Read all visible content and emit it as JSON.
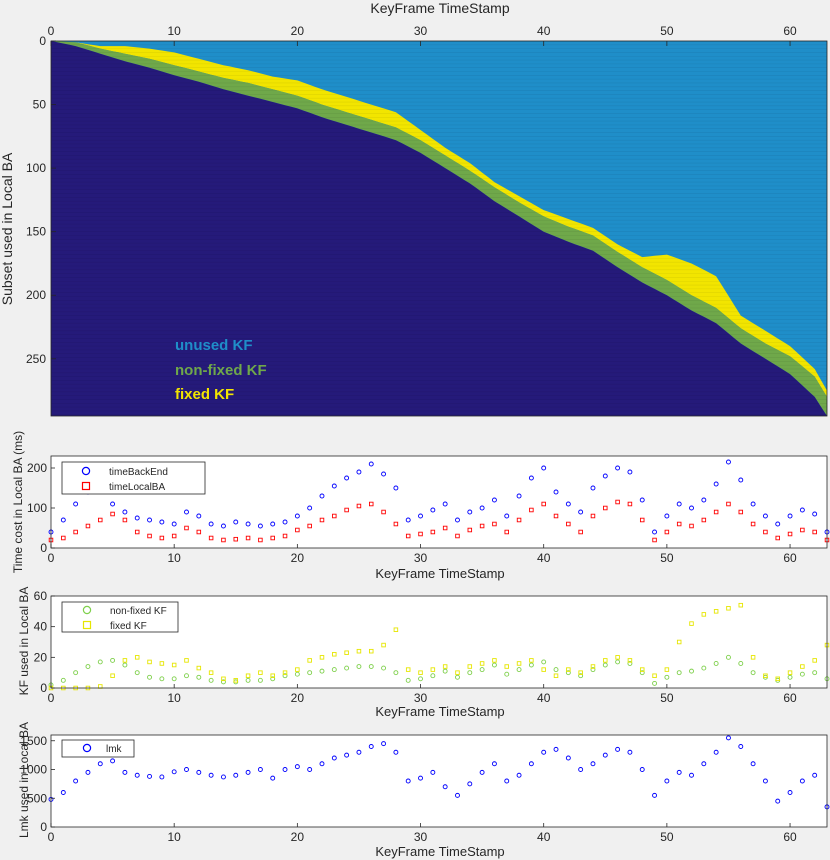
{
  "figure": {
    "background": "#f0f0f0",
    "colors": {
      "unused": "#1f8ec9",
      "nonfixed": "#6fa84a",
      "fixed": "#f2e500",
      "beyond": "#251a7a",
      "blue_marker": "#0000ff",
      "red_marker": "#ff0000",
      "green_marker": "#7fd04c",
      "yellow_marker": "#e6e600"
    }
  },
  "chart_data": [
    {
      "type": "heatmap",
      "title": "KeyFrame TimeStamp",
      "xlabel": "",
      "ylabel": "Subset used in Local BA",
      "xlim": [
        0,
        63
      ],
      "ylim": [
        0,
        295
      ],
      "xticks": [
        "0",
        "10",
        "20",
        "30",
        "40",
        "50",
        "60"
      ],
      "yticks": [
        "0",
        "50",
        "100",
        "150",
        "200",
        "250"
      ],
      "annotations": [
        {
          "text": "unused KF",
          "color": "#1f8ec9"
        },
        {
          "text": "non-fixed KF",
          "color": "#6fa84a"
        },
        {
          "text": "fixed KF",
          "color": "#f2e500"
        }
      ],
      "profile": {
        "x": [
          0,
          2,
          4,
          6,
          8,
          10,
          12,
          14,
          16,
          18,
          20,
          22,
          24,
          26,
          28,
          30,
          32,
          34,
          36,
          38,
          40,
          42,
          44,
          46,
          48,
          50,
          52,
          54,
          56,
          58,
          60,
          62,
          63
        ],
        "diagonal_row": [
          0,
          4,
          10,
          16,
          21,
          27,
          32,
          38,
          43,
          48,
          53,
          60,
          66,
          72,
          78,
          88,
          100,
          112,
          126,
          138,
          150,
          158,
          165,
          178,
          190,
          200,
          212,
          222,
          238,
          250,
          262,
          280,
          295
        ],
        "nonfixed_band": [
          0,
          3,
          4,
          6,
          7,
          8,
          8,
          9,
          10,
          10,
          10,
          10,
          10,
          10,
          10,
          10,
          10,
          10,
          11,
          11,
          12,
          12,
          12,
          12,
          12,
          12,
          12,
          12,
          12,
          12,
          14,
          16,
          15
        ],
        "fixed_band": [
          0,
          0,
          2,
          6,
          8,
          10,
          10,
          10,
          10,
          10,
          12,
          12,
          12,
          12,
          12,
          8,
          6,
          6,
          4,
          5,
          5,
          6,
          6,
          6,
          8,
          20,
          25,
          25,
          10,
          10,
          8,
          6,
          5
        ]
      }
    },
    {
      "type": "scatter",
      "xlabel": "KeyFrame TimeStamp",
      "ylabel": "Time cost in Local BA (ms)",
      "xlim": [
        0,
        63
      ],
      "ylim": [
        0,
        230
      ],
      "xticks": [
        "0",
        "10",
        "20",
        "30",
        "40",
        "50",
        "60"
      ],
      "yticks": [
        "0",
        "100",
        "200"
      ],
      "legend_position": "top-left",
      "series": [
        {
          "name": "timeBackEnd",
          "marker": "circle",
          "color": "#0000ff",
          "x": [
            0,
            1,
            2,
            3,
            4,
            5,
            6,
            7,
            8,
            9,
            10,
            11,
            12,
            13,
            14,
            15,
            16,
            17,
            18,
            19,
            20,
            21,
            22,
            23,
            24,
            25,
            26,
            27,
            28,
            29,
            30,
            31,
            32,
            33,
            34,
            35,
            36,
            37,
            38,
            39,
            40,
            41,
            42,
            43,
            44,
            45,
            46,
            47,
            48,
            49,
            50,
            51,
            52,
            53,
            54,
            55,
            56,
            57,
            58,
            59,
            60,
            61,
            62,
            63
          ],
          "y": [
            40,
            70,
            110,
            140,
            165,
            110,
            90,
            75,
            70,
            65,
            60,
            90,
            80,
            60,
            55,
            65,
            60,
            55,
            60,
            65,
            80,
            100,
            130,
            155,
            175,
            190,
            210,
            185,
            150,
            70,
            80,
            95,
            110,
            70,
            90,
            100,
            120,
            80,
            130,
            175,
            200,
            140,
            110,
            90,
            150,
            180,
            200,
            190,
            120,
            40,
            80,
            110,
            100,
            120,
            160,
            215,
            170,
            110,
            80,
            60,
            80,
            95,
            85,
            40
          ]
        },
        {
          "name": "timeLocalBA",
          "marker": "square",
          "color": "#ff0000",
          "x": [
            0,
            1,
            2,
            3,
            4,
            5,
            6,
            7,
            8,
            9,
            10,
            11,
            12,
            13,
            14,
            15,
            16,
            17,
            18,
            19,
            20,
            21,
            22,
            23,
            24,
            25,
            26,
            27,
            28,
            29,
            30,
            31,
            32,
            33,
            34,
            35,
            36,
            37,
            38,
            39,
            40,
            41,
            42,
            43,
            44,
            45,
            46,
            47,
            48,
            49,
            50,
            51,
            52,
            53,
            54,
            55,
            56,
            57,
            58,
            59,
            60,
            61,
            62,
            63
          ],
          "y": [
            20,
            25,
            40,
            55,
            70,
            85,
            70,
            40,
            30,
            25,
            30,
            50,
            40,
            25,
            20,
            22,
            25,
            20,
            25,
            30,
            45,
            55,
            70,
            80,
            95,
            105,
            110,
            90,
            60,
            30,
            35,
            40,
            50,
            30,
            45,
            55,
            60,
            40,
            70,
            95,
            110,
            80,
            60,
            40,
            80,
            100,
            115,
            110,
            70,
            20,
            40,
            60,
            55,
            70,
            90,
            110,
            90,
            60,
            40,
            25,
            35,
            45,
            40,
            20
          ]
        }
      ]
    },
    {
      "type": "scatter",
      "xlabel": "KeyFrame TimeStamp",
      "ylabel": "KF used in Local BA",
      "xlim": [
        0,
        63
      ],
      "ylim": [
        0,
        60
      ],
      "xticks": [
        "0",
        "10",
        "20",
        "30",
        "40",
        "50",
        "60"
      ],
      "yticks": [
        "0",
        "20",
        "40",
        "60"
      ],
      "legend_position": "top-left",
      "series": [
        {
          "name": "non-fixed KF",
          "marker": "circle",
          "color": "#7fd04c",
          "x": [
            0,
            1,
            2,
            3,
            4,
            5,
            6,
            7,
            8,
            9,
            10,
            11,
            12,
            13,
            14,
            15,
            16,
            17,
            18,
            19,
            20,
            21,
            22,
            23,
            24,
            25,
            26,
            27,
            28,
            29,
            30,
            31,
            32,
            33,
            34,
            35,
            36,
            37,
            38,
            39,
            40,
            41,
            42,
            43,
            44,
            45,
            46,
            47,
            48,
            49,
            50,
            51,
            52,
            53,
            54,
            55,
            56,
            57,
            58,
            59,
            60,
            61,
            62,
            63
          ],
          "y": [
            2,
            5,
            10,
            14,
            17,
            18,
            15,
            10,
            7,
            6,
            6,
            8,
            7,
            5,
            4,
            4,
            5,
            5,
            6,
            8,
            9,
            10,
            11,
            12,
            13,
            14,
            14,
            13,
            10,
            5,
            6,
            8,
            11,
            7,
            10,
            12,
            15,
            9,
            12,
            15,
            17,
            12,
            10,
            8,
            12,
            15,
            17,
            16,
            10,
            3,
            7,
            10,
            11,
            13,
            16,
            20,
            16,
            10,
            7,
            5,
            7,
            9,
            10,
            6
          ]
        },
        {
          "name": "fixed KF",
          "marker": "square",
          "color": "#e6e600",
          "x": [
            0,
            1,
            2,
            3,
            4,
            5,
            6,
            7,
            8,
            9,
            10,
            11,
            12,
            13,
            14,
            15,
            16,
            17,
            18,
            19,
            20,
            21,
            22,
            23,
            24,
            25,
            26,
            27,
            28,
            29,
            30,
            31,
            32,
            33,
            34,
            35,
            36,
            37,
            38,
            39,
            40,
            41,
            42,
            43,
            44,
            45,
            46,
            47,
            48,
            49,
            50,
            51,
            52,
            53,
            54,
            55,
            56,
            57,
            58,
            59,
            60,
            61,
            62,
            63
          ],
          "y": [
            0,
            0,
            0,
            0,
            1,
            8,
            18,
            20,
            17,
            16,
            15,
            18,
            13,
            10,
            6,
            5,
            8,
            10,
            8,
            10,
            12,
            18,
            20,
            22,
            23,
            24,
            24,
            28,
            38,
            12,
            10,
            12,
            14,
            10,
            14,
            16,
            18,
            14,
            16,
            18,
            12,
            8,
            12,
            10,
            14,
            18,
            20,
            18,
            12,
            8,
            12,
            30,
            42,
            48,
            50,
            52,
            54,
            20,
            8,
            6,
            10,
            14,
            18,
            28
          ]
        }
      ]
    },
    {
      "type": "scatter",
      "xlabel": "KeyFrame TimeStamp",
      "ylabel": "Lmk used in Local BA",
      "xlim": [
        0,
        63
      ],
      "ylim": [
        0,
        1600
      ],
      "xticks": [
        "0",
        "10",
        "20",
        "30",
        "40",
        "50",
        "60"
      ],
      "yticks": [
        "0",
        "500",
        "1000",
        "1500"
      ],
      "legend_position": "top-left",
      "series": [
        {
          "name": "lmk",
          "marker": "circle",
          "color": "#0000ff",
          "x": [
            0,
            1,
            2,
            3,
            4,
            5,
            6,
            7,
            8,
            9,
            10,
            11,
            12,
            13,
            14,
            15,
            16,
            17,
            18,
            19,
            20,
            21,
            22,
            23,
            24,
            25,
            26,
            27,
            28,
            29,
            30,
            31,
            32,
            33,
            34,
            35,
            36,
            37,
            38,
            39,
            40,
            41,
            42,
            43,
            44,
            45,
            46,
            47,
            48,
            49,
            50,
            51,
            52,
            53,
            54,
            55,
            56,
            57,
            58,
            59,
            60,
            61,
            62,
            63
          ],
          "y": [
            480,
            600,
            800,
            950,
            1100,
            1150,
            950,
            900,
            880,
            870,
            960,
            1000,
            950,
            900,
            870,
            900,
            950,
            1000,
            850,
            1000,
            1050,
            1000,
            1100,
            1200,
            1250,
            1300,
            1400,
            1450,
            1300,
            800,
            850,
            950,
            700,
            550,
            750,
            950,
            1100,
            800,
            900,
            1100,
            1300,
            1350,
            1200,
            1000,
            1100,
            1250,
            1350,
            1300,
            1000,
            550,
            800,
            950,
            900,
            1100,
            1300,
            1550,
            1400,
            1100,
            800,
            450,
            600,
            800,
            900,
            350
          ]
        }
      ]
    }
  ]
}
